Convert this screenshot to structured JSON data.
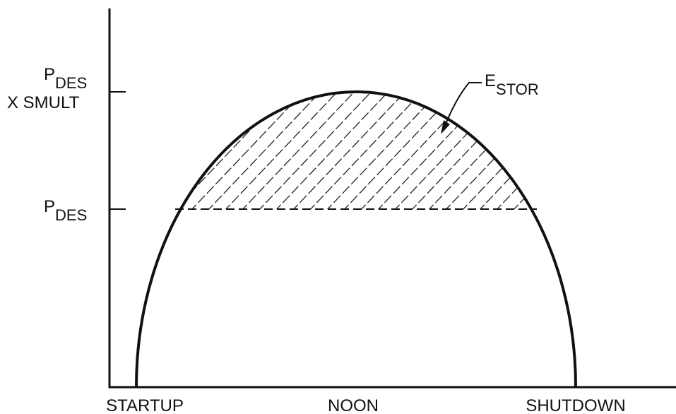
{
  "y_labels": [
    {
      "main": "P",
      "sub": "DES",
      "line2": "X SMULT"
    },
    {
      "main": "P",
      "sub": "DES"
    }
  ],
  "annotation": {
    "main": "E",
    "sub": "STOR"
  },
  "x_labels": [
    "STARTUP",
    "NOON",
    "SHUTDOWN"
  ]
}
